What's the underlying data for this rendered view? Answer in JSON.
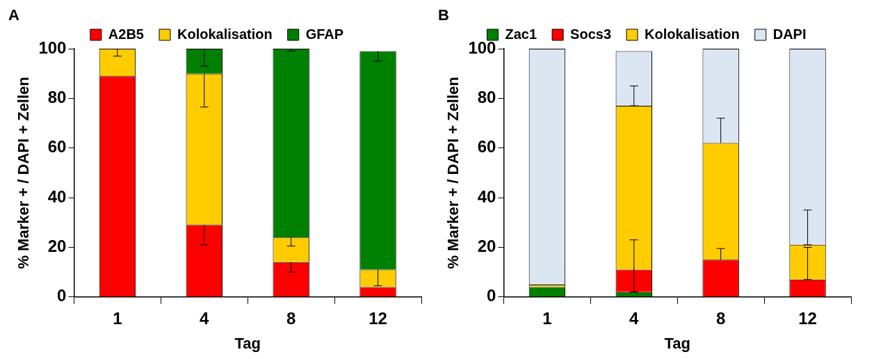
{
  "chart_data": [
    {
      "type": "bar",
      "annotations": [
        "A"
      ],
      "xlabel": "Tag",
      "ylabel": "% Marker + / DAPI + Zellen",
      "categories": [
        "1",
        "4",
        "8",
        "12"
      ],
      "stacked": true,
      "ylim": [
        0,
        100
      ],
      "yticks": [
        0,
        20,
        40,
        60,
        80,
        100
      ],
      "grid": false,
      "legend": "top",
      "series": [
        {
          "name": "A2B5",
          "color": "#ff0000",
          "values": [
            89,
            29,
            14,
            4
          ],
          "errors": [
            null,
            [
              21,
              29
            ],
            [
              10,
              14
            ],
            null
          ]
        },
        {
          "name": "Kolokalisation",
          "color": "#ffcc00",
          "values": [
            11,
            61,
            10,
            7
          ],
          "errors": [
            [
              97,
              100
            ],
            [
              76.5,
              90
            ],
            [
              20.5,
              24
            ],
            [
              4.5,
              11
            ]
          ]
        },
        {
          "name": "GFAP",
          "color": "#008000",
          "values": [
            0,
            10,
            76,
            88
          ],
          "errors": [
            null,
            [
              93,
              100
            ],
            [
              99,
              100
            ],
            [
              95,
              99
            ]
          ]
        }
      ]
    },
    {
      "type": "bar",
      "annotations": [
        "B"
      ],
      "xlabel": "Tag",
      "ylabel": "% Marker + / DAPI + Zellen",
      "categories": [
        "1",
        "4",
        "8",
        "12"
      ],
      "stacked": true,
      "ylim": [
        0,
        100
      ],
      "yticks": [
        0,
        20,
        40,
        60,
        80,
        100
      ],
      "grid": false,
      "legend": "top",
      "series": [
        {
          "name": "Zac1",
          "color": "#008000",
          "values": [
            4,
            2,
            0,
            0
          ]
        },
        {
          "name": "Socs3",
          "color": "#ff0000",
          "values": [
            0,
            9,
            15,
            7
          ],
          "errors": [
            null,
            [
              2,
              23
            ],
            [
              15,
              19.5
            ],
            null
          ]
        },
        {
          "name": "Kolokalisation",
          "color": "#ffcc00",
          "values": [
            1,
            66,
            47,
            14
          ],
          "errors": [
            null,
            null,
            [
              62,
              72
            ],
            [
              7,
              20
            ]
          ]
        },
        {
          "name": "DAPI",
          "color": "#dce6f2",
          "values": [
            95,
            22,
            38,
            79
          ],
          "errors": [
            null,
            [
              77,
              85
            ],
            null,
            [
              21,
              35
            ]
          ]
        }
      ]
    }
  ]
}
